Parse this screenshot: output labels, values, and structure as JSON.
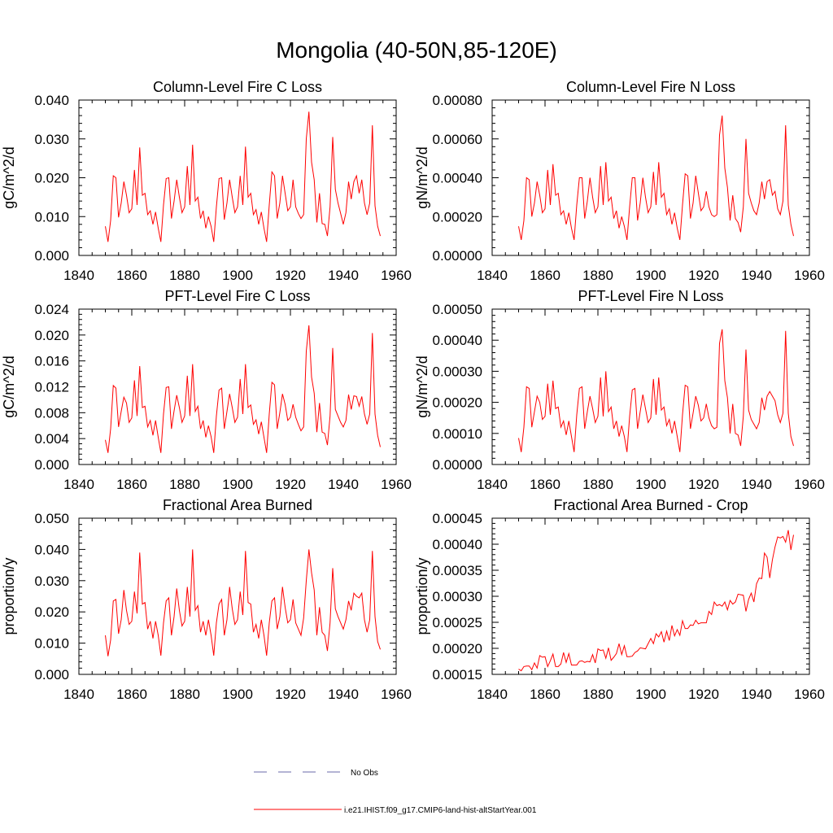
{
  "title": "Mongolia (40-50N,85-120E)",
  "colors": {
    "model": "#ff0000",
    "obs": "#6a6aaa",
    "axis": "#000000"
  },
  "legend": {
    "entries": [
      {
        "label": "No Obs",
        "style": "dashed",
        "color": "#6a6aaa"
      },
      {
        "label": "i.e21.IHIST.f09_g17.CMIP6-land-hist-altStartYear.001",
        "style": "solid",
        "color": "#ff0000"
      }
    ]
  },
  "chart_data": [
    {
      "type": "line",
      "title": "Column-Level Fire C Loss",
      "ylabel": "gC/m^2/d",
      "xlim": [
        1840,
        1960
      ],
      "ylim": [
        0,
        0.04
      ],
      "xticks": [
        "1840",
        "1860",
        "1880",
        "1900",
        "1920",
        "1940",
        "1960"
      ],
      "yticks": [
        "0.000",
        "0.010",
        "0.020",
        "0.030",
        "0.040"
      ],
      "x_start": 1850,
      "series": [
        {
          "values": [
            0.0075,
            0.0035,
            0.009,
            0.0205,
            0.02,
            0.0098,
            0.0135,
            0.019,
            0.0155,
            0.011,
            0.012,
            0.022,
            0.013,
            0.0278,
            0.0155,
            0.016,
            0.0105,
            0.0115,
            0.008,
            0.0112,
            0.007,
            0.0035,
            0.013,
            0.0198,
            0.02,
            0.0095,
            0.014,
            0.0195,
            0.015,
            0.011,
            0.0125,
            0.023,
            0.013,
            0.0285,
            0.014,
            0.015,
            0.0095,
            0.0115,
            0.007,
            0.01,
            0.0075,
            0.0035,
            0.0125,
            0.0198,
            0.02,
            0.0092,
            0.0135,
            0.0195,
            0.015,
            0.011,
            0.0125,
            0.0205,
            0.013,
            0.028,
            0.015,
            0.016,
            0.0105,
            0.0118,
            0.008,
            0.0112,
            0.007,
            0.0035,
            0.013,
            0.0215,
            0.0205,
            0.0095,
            0.0135,
            0.0205,
            0.016,
            0.0115,
            0.0125,
            0.0195,
            0.0125,
            0.0108,
            0.0095,
            0.0105,
            0.03,
            0.037,
            0.024,
            0.0195,
            0.0085,
            0.016,
            0.0082,
            0.008,
            0.005,
            0.0125,
            0.0305,
            0.017,
            0.0135,
            0.0108,
            0.008,
            0.011,
            0.019,
            0.0145,
            0.019,
            0.0205,
            0.016,
            0.0195,
            0.0135,
            0.0105,
            0.0135,
            0.0335,
            0.0128,
            0.0075,
            0.005
          ]
        }
      ]
    },
    {
      "type": "line",
      "title": "Column-Level Fire N Loss",
      "ylabel": "gN/m^2/d",
      "xlim": [
        1840,
        1960
      ],
      "ylim": [
        0,
        0.0008
      ],
      "xticks": [
        "1840",
        "1860",
        "1880",
        "1900",
        "1920",
        "1940",
        "1960"
      ],
      "yticks": [
        "0.00000",
        "0.00020",
        "0.00040",
        "0.00060",
        "0.00080"
      ],
      "x_start": 1850,
      "series": [
        {
          "values": [
            0.00015,
            8e-05,
            0.00018,
            0.0004,
            0.00039,
            0.0002,
            0.00027,
            0.00038,
            0.00031,
            0.00022,
            0.00024,
            0.00044,
            0.00026,
            0.00047,
            0.00031,
            0.00032,
            0.00021,
            0.00023,
            0.00016,
            0.00022,
            0.00014,
            8e-05,
            0.00026,
            0.0004,
            0.0004,
            0.00019,
            0.00028,
            0.0004,
            0.0003,
            0.00022,
            0.00025,
            0.00046,
            0.00026,
            0.00048,
            0.00028,
            0.0003,
            0.00019,
            0.00023,
            0.00014,
            0.0002,
            0.00015,
            8e-05,
            0.00025,
            0.0004,
            0.0004,
            0.00018,
            0.00027,
            0.0004,
            0.0003,
            0.00022,
            0.00025,
            0.00043,
            0.00026,
            0.00048,
            0.0003,
            0.00032,
            0.00021,
            0.00024,
            0.00016,
            0.00022,
            0.00014,
            8e-05,
            0.00026,
            0.00042,
            0.00041,
            0.00019,
            0.00027,
            0.00041,
            0.00032,
            0.00023,
            0.00025,
            0.00033,
            0.00025,
            0.00021,
            0.0002,
            0.00021,
            0.00062,
            0.00072,
            0.00045,
            0.00035,
            0.00018,
            0.00031,
            0.00019,
            0.00017,
            0.00012,
            0.00025,
            0.0006,
            0.00032,
            0.00027,
            0.00023,
            0.00021,
            0.00027,
            0.00038,
            0.00029,
            0.00038,
            0.00039,
            0.00031,
            0.00033,
            0.00024,
            0.00021,
            0.00028,
            0.00067,
            0.00026,
            0.00016,
            0.0001
          ]
        }
      ]
    },
    {
      "type": "line",
      "title": "PFT-Level Fire C Loss",
      "ylabel": "gC/m^2/d",
      "xlim": [
        1840,
        1960
      ],
      "ylim": [
        0,
        0.024
      ],
      "xticks": [
        "1840",
        "1860",
        "1880",
        "1900",
        "1920",
        "1940",
        "1960"
      ],
      "yticks": [
        "0.000",
        "0.004",
        "0.008",
        "0.012",
        "0.016",
        "0.020",
        "0.024"
      ],
      "x_start": 1850,
      "series": [
        {
          "values": [
            0.0038,
            0.0018,
            0.0055,
            0.0122,
            0.0118,
            0.0058,
            0.0082,
            0.0104,
            0.0095,
            0.0065,
            0.0072,
            0.013,
            0.0075,
            0.0152,
            0.0088,
            0.009,
            0.0058,
            0.0068,
            0.0045,
            0.0068,
            0.0042,
            0.0018,
            0.0078,
            0.0119,
            0.012,
            0.0055,
            0.0083,
            0.0107,
            0.0088,
            0.0065,
            0.0075,
            0.0137,
            0.0075,
            0.0155,
            0.0082,
            0.009,
            0.0055,
            0.0068,
            0.0042,
            0.006,
            0.0043,
            0.0018,
            0.0075,
            0.0115,
            0.0118,
            0.0055,
            0.0082,
            0.0109,
            0.0088,
            0.0065,
            0.0073,
            0.0132,
            0.0078,
            0.0155,
            0.0088,
            0.0092,
            0.0062,
            0.0069,
            0.0047,
            0.0066,
            0.0042,
            0.0018,
            0.0078,
            0.0127,
            0.0123,
            0.0055,
            0.008,
            0.0109,
            0.0093,
            0.0068,
            0.0073,
            0.0093,
            0.0073,
            0.0062,
            0.0052,
            0.0058,
            0.0175,
            0.0215,
            0.0135,
            0.011,
            0.005,
            0.0095,
            0.005,
            0.0048,
            0.003,
            0.0075,
            0.018,
            0.0085,
            0.0075,
            0.0065,
            0.0058,
            0.0068,
            0.0108,
            0.0085,
            0.0106,
            0.0105,
            0.009,
            0.0105,
            0.0078,
            0.0062,
            0.0078,
            0.0203,
            0.0078,
            0.0045,
            0.0027
          ]
        }
      ]
    },
    {
      "type": "line",
      "title": "PFT-Level Fire N Loss",
      "ylabel": "gN/m^2/d",
      "xlim": [
        1840,
        1960
      ],
      "ylim": [
        0,
        0.0005
      ],
      "xticks": [
        "1840",
        "1860",
        "1880",
        "1900",
        "1920",
        "1940",
        "1960"
      ],
      "yticks": [
        "0.00000",
        "0.00010",
        "0.00020",
        "0.00030",
        "0.00040",
        "0.00050"
      ],
      "x_start": 1850,
      "series": [
        {
          "values": [
            8.5e-05,
            4e-05,
            0.00012,
            0.00025,
            0.000245,
            0.00012,
            0.00017,
            0.00022,
            0.0002,
            0.000145,
            0.000155,
            0.00026,
            0.00016,
            0.00027,
            0.00018,
            0.000185,
            0.00012,
            0.00014,
            9.5e-05,
            0.00014,
            9e-05,
            4e-05,
            0.00016,
            0.000245,
            0.00025,
            0.000115,
            0.00017,
            0.00022,
            0.00018,
            0.000135,
            0.000155,
            0.00028,
            0.000155,
            0.0003,
            0.00017,
            0.000185,
            0.000115,
            0.00014,
            9e-05,
            0.000125,
            9e-05,
            4e-05,
            0.000155,
            0.00024,
            0.000245,
            0.000115,
            0.00017,
            0.000225,
            0.00018,
            0.000135,
            0.00015,
            0.000275,
            0.00016,
            0.00028,
            0.000175,
            0.000185,
            0.000125,
            0.000145,
            0.0001,
            0.00014,
            9e-05,
            4e-05,
            0.00016,
            0.000255,
            0.00025,
            0.000115,
            0.000165,
            0.00022,
            0.00019,
            0.00014,
            0.00015,
            0.000195,
            0.00015,
            0.000125,
            0.000115,
            0.00012,
            0.00039,
            0.000435,
            0.00027,
            0.000215,
            0.0001,
            0.000195,
            0.0001,
            9.5e-05,
            6e-05,
            0.000155,
            0.00037,
            0.000175,
            0.000145,
            0.00013,
            0.000115,
            0.000135,
            0.000215,
            0.000175,
            0.00022,
            0.000235,
            0.00022,
            0.000205,
            0.00016,
            0.000135,
            0.000165,
            0.00043,
            0.000165,
            9e-05,
            6e-05
          ]
        }
      ]
    },
    {
      "type": "line",
      "title": "Fractional Area Burned",
      "ylabel": "proportion/y",
      "xlim": [
        1840,
        1960
      ],
      "ylim": [
        0,
        0.05
      ],
      "xticks": [
        "1840",
        "1860",
        "1880",
        "1900",
        "1920",
        "1940",
        "1960"
      ],
      "yticks": [
        "0.000",
        "0.010",
        "0.020",
        "0.030",
        "0.040",
        "0.050"
      ],
      "x_start": 1850,
      "series": [
        {
          "values": [
            0.0125,
            0.0058,
            0.011,
            0.0235,
            0.024,
            0.013,
            0.0175,
            0.027,
            0.0205,
            0.016,
            0.017,
            0.0265,
            0.0195,
            0.039,
            0.0225,
            0.023,
            0.0145,
            0.017,
            0.0115,
            0.017,
            0.0125,
            0.006,
            0.0165,
            0.0235,
            0.0245,
            0.0125,
            0.0185,
            0.0275,
            0.0205,
            0.0155,
            0.017,
            0.028,
            0.0185,
            0.04,
            0.0205,
            0.022,
            0.0135,
            0.017,
            0.0125,
            0.0175,
            0.0125,
            0.006,
            0.0165,
            0.0225,
            0.024,
            0.0125,
            0.0175,
            0.028,
            0.021,
            0.016,
            0.0175,
            0.0265,
            0.019,
            0.0395,
            0.023,
            0.0225,
            0.0135,
            0.016,
            0.0115,
            0.0175,
            0.0125,
            0.006,
            0.0165,
            0.0235,
            0.0245,
            0.0145,
            0.0185,
            0.028,
            0.0215,
            0.0165,
            0.0175,
            0.024,
            0.0165,
            0.0145,
            0.0125,
            0.018,
            0.03,
            0.04,
            0.0325,
            0.027,
            0.0125,
            0.0215,
            0.0135,
            0.0125,
            0.0075,
            0.0165,
            0.034,
            0.021,
            0.0185,
            0.0165,
            0.0145,
            0.0175,
            0.0235,
            0.0205,
            0.026,
            0.025,
            0.0245,
            0.026,
            0.0175,
            0.0135,
            0.0175,
            0.0395,
            0.0185,
            0.0105,
            0.008
          ]
        }
      ]
    },
    {
      "type": "line",
      "title": "Fractional Area Burned - Crop",
      "ylabel": "proportion/y",
      "xlim": [
        1840,
        1960
      ],
      "ylim": [
        0.00015,
        0.00045
      ],
      "xticks": [
        "1840",
        "1860",
        "1880",
        "1900",
        "1920",
        "1940",
        "1960"
      ],
      "yticks": [
        "0.00015",
        "0.00020",
        "0.00025",
        "0.00030",
        "0.00035",
        "0.00040",
        "0.00045"
      ],
      "x_start": 1850,
      "series": [
        {
          "values": [
            0.00016,
            0.000157,
            0.000165,
            0.000166,
            0.000166,
            0.000159,
            0.000172,
            0.000162,
            0.000186,
            0.000183,
            0.000184,
            0.000165,
            0.000176,
            0.000189,
            0.000165,
            0.000165,
            0.00017,
            0.000192,
            0.000173,
            0.00019,
            0.000168,
            0.000168,
            0.000168,
            0.000175,
            0.000176,
            0.000173,
            0.000175,
            0.000174,
            0.000188,
            0.000172,
            0.000199,
            0.000196,
            0.000197,
            0.000181,
            0.000201,
            0.000177,
            0.000183,
            0.00019,
            0.000209,
            0.000188,
            0.000205,
            0.000184,
            0.000184,
            0.000185,
            0.000192,
            0.000195,
            0.000201,
            0.0002,
            0.000199,
            0.000209,
            0.000219,
            0.000209,
            0.000228,
            0.000222,
            0.000232,
            0.000212,
            0.000233,
            0.000215,
            0.000244,
            0.000224,
            0.000236,
            0.000225,
            0.000253,
            0.000238,
            0.000238,
            0.000245,
            0.000244,
            0.000254,
            0.000247,
            0.000249,
            0.000249,
            0.000249,
            0.000271,
            0.000265,
            0.000289,
            0.000282,
            0.000284,
            0.000281,
            0.000289,
            0.000274,
            0.000292,
            0.000285,
            0.000289,
            0.000304,
            0.000303,
            0.000302,
            0.000271,
            0.000294,
            0.000306,
            0.000289,
            0.000324,
            0.000335,
            0.000334,
            0.000383,
            0.000375,
            0.000335,
            0.00037,
            0.000395,
            0.000414,
            0.000412,
            0.000415,
            0.000404,
            0.000427,
            0.000389,
            0.000418
          ]
        }
      ]
    }
  ]
}
